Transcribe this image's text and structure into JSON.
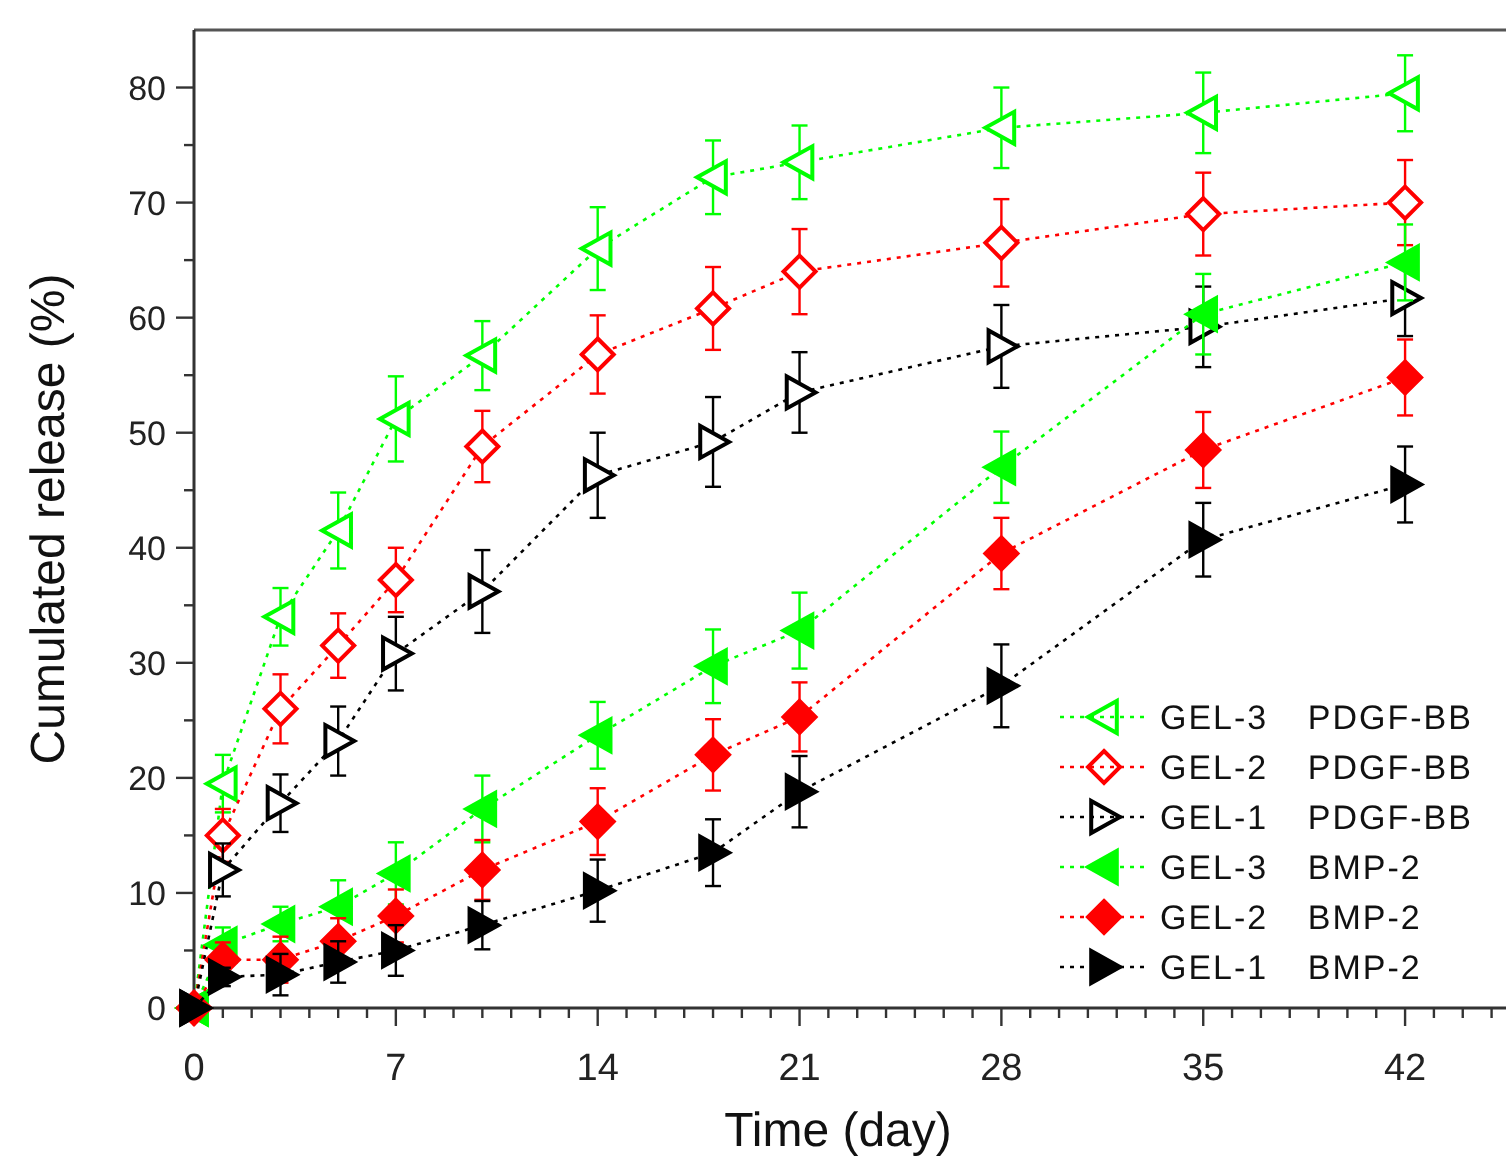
{
  "chart_data": {
    "type": "line",
    "xlabel": "Time (day)",
    "ylabel": "Cumulated release (%)",
    "x": [
      0,
      1,
      3,
      5,
      7,
      10,
      14,
      18,
      21,
      28,
      35,
      42
    ],
    "xlim": [
      0,
      45.5
    ],
    "xticks": [
      0,
      {
        "value": 1,
        "label": null
      },
      {
        "value": 2,
        "label": null
      },
      {
        "value": 3,
        "label": null
      },
      {
        "value": 4,
        "label": null
      },
      {
        "value": 5,
        "label": null
      },
      {
        "value": 6,
        "label": null
      },
      7,
      {
        "value": 8,
        "label": null
      },
      {
        "value": 9,
        "label": null
      },
      {
        "value": 10,
        "label": null
      },
      {
        "value": 11,
        "label": null
      },
      {
        "value": 12,
        "label": null
      },
      {
        "value": 13,
        "label": null
      },
      14,
      {
        "value": 15,
        "label": null
      },
      {
        "value": 16,
        "label": null
      },
      {
        "value": 17,
        "label": null
      },
      {
        "value": 18,
        "label": null
      },
      {
        "value": 19,
        "label": null
      },
      {
        "value": 20,
        "label": null
      },
      21,
      {
        "value": 22,
        "label": null
      },
      {
        "value": 23,
        "label": null
      },
      {
        "value": 24,
        "label": null
      },
      {
        "value": 25,
        "label": null
      },
      {
        "value": 26,
        "label": null
      },
      {
        "value": 27,
        "label": null
      },
      28,
      {
        "value": 29,
        "label": null
      },
      {
        "value": 30,
        "label": null
      },
      {
        "value": 31,
        "label": null
      },
      {
        "value": 32,
        "label": null
      },
      {
        "value": 33,
        "label": null
      },
      {
        "value": 34,
        "label": null
      },
      35,
      {
        "value": 36,
        "label": null
      },
      {
        "value": 37,
        "label": null
      },
      {
        "value": 38,
        "label": null
      },
      {
        "value": 39,
        "label": null
      },
      {
        "value": 40,
        "label": null
      },
      {
        "value": 41,
        "label": null
      },
      42,
      {
        "value": 43,
        "label": null
      },
      {
        "value": 44,
        "label": null
      },
      {
        "value": 45,
        "label": null
      }
    ],
    "ylim": [
      0,
      85
    ],
    "yticks": [
      0,
      {
        "value": 5,
        "label": null
      },
      10,
      {
        "value": 15,
        "label": null
      },
      20,
      {
        "value": 25,
        "label": null
      },
      30,
      {
        "value": 35,
        "label": null
      },
      40,
      {
        "value": 45,
        "label": null
      },
      50,
      {
        "value": 55,
        "label": null
      },
      60,
      {
        "value": 65,
        "label": null
      },
      70,
      {
        "value": 75,
        "label": null
      },
      80
    ],
    "grid": false,
    "legend": "bottom right",
    "line_style": "dotted",
    "series": [
      {
        "name": "GEL-3 PDGF-BB",
        "color": "#00ff00",
        "marker": "triangle-left-open",
        "values": [
          0,
          19.5,
          34,
          41.5,
          51.2,
          56.7,
          66,
          72.2,
          73.5,
          76.5,
          77.8,
          79.5
        ],
        "errors": [
          null,
          2.5,
          2.5,
          3.3,
          3.7,
          3,
          3.6,
          3.2,
          3.2,
          3.5,
          3.5,
          3.3
        ]
      },
      {
        "name": "GEL-2 PDGF-BB",
        "color": "#ff0000",
        "marker": "diamond-open",
        "values": [
          0,
          15,
          26,
          31.5,
          37.2,
          48.8,
          56.8,
          60.8,
          64,
          66.5,
          69,
          70
        ],
        "errors": [
          null,
          2.3,
          3,
          2.8,
          2.8,
          3.1,
          3.4,
          3.6,
          3.7,
          3.8,
          3.6,
          3.7
        ]
      },
      {
        "name": "GEL-1 PDGF-BB",
        "color": "#000000",
        "marker": "triangle-right-open",
        "values": [
          0,
          12,
          17.8,
          23.2,
          30.8,
          36.2,
          46.3,
          49.2,
          53.5,
          57.5,
          59.2,
          61.7
        ],
        "errors": [
          null,
          2.3,
          2.5,
          3,
          3.2,
          3.6,
          3.7,
          3.9,
          3.5,
          3.6,
          3.5,
          3.3
        ]
      },
      {
        "name": "GEL-3 BMP-2",
        "color": "#00ff00",
        "marker": "triangle-left",
        "values": [
          0,
          5.5,
          7.3,
          8.8,
          11.7,
          17.3,
          23.7,
          29.7,
          32.8,
          47,
          60.3,
          64.8
        ],
        "errors": [
          null,
          1.5,
          1.5,
          2.3,
          2.7,
          2.9,
          2.9,
          3.2,
          3.3,
          3.1,
          3.5,
          3.3
        ]
      },
      {
        "name": "GEL-2 BMP-2",
        "color": "#ff0000",
        "marker": "diamond",
        "values": [
          0,
          4.2,
          4.2,
          5.8,
          8,
          12,
          16.2,
          22,
          25.3,
          39.5,
          48.5,
          54.8
        ],
        "errors": [
          null,
          1.5,
          2,
          2,
          2.3,
          2.6,
          2.9,
          3.1,
          3,
          3.1,
          3.3,
          3.3
        ]
      },
      {
        "name": "GEL-1 BMP-2",
        "color": "#000000",
        "marker": "triangle-right",
        "values": [
          0,
          2.7,
          2.9,
          4,
          5,
          7.2,
          10.2,
          13.5,
          18.8,
          28,
          40.7,
          45.5
        ],
        "errors": [
          null,
          0.8,
          1.8,
          1.8,
          2.2,
          2.1,
          2.7,
          2.9,
          3.1,
          3.6,
          3.2,
          3.3
        ]
      }
    ]
  }
}
